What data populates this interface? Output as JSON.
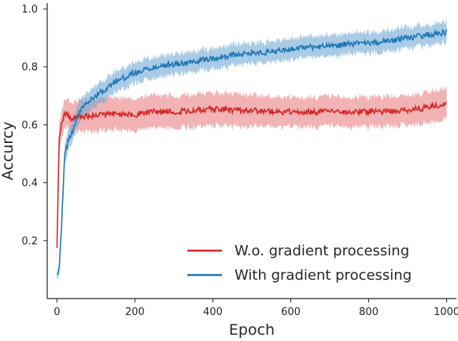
{
  "chart_data": {
    "type": "line",
    "xlabel": "Epoch",
    "ylabel": "Accurcy",
    "xlim": [
      -25,
      1025
    ],
    "ylim": [
      0.0,
      1.02
    ],
    "xticks": [
      0,
      200,
      400,
      600,
      800,
      1000
    ],
    "yticks": [
      0.2,
      0.4,
      0.6,
      0.8,
      1.0
    ],
    "xtick_labels": [
      "0",
      "200",
      "400",
      "600",
      "800",
      "1000"
    ],
    "ytick_labels": [
      "0.2",
      "0.4",
      "0.6",
      "0.8",
      "1.0"
    ],
    "grid": false,
    "legend_position": "lower-right",
    "series": [
      {
        "name": "W.o. gradient processing",
        "color": "#d62728",
        "band_color": "#e88080",
        "x": [
          0,
          3,
          6,
          10,
          15,
          20,
          30,
          40,
          60,
          80,
          100,
          150,
          200,
          250,
          300,
          350,
          400,
          450,
          500,
          550,
          600,
          650,
          700,
          750,
          800,
          850,
          900,
          950,
          1000
        ],
        "y": [
          0.17,
          0.4,
          0.55,
          0.59,
          0.62,
          0.64,
          0.63,
          0.62,
          0.63,
          0.63,
          0.635,
          0.64,
          0.635,
          0.645,
          0.645,
          0.65,
          0.655,
          0.65,
          0.65,
          0.645,
          0.645,
          0.645,
          0.645,
          0.645,
          0.645,
          0.645,
          0.65,
          0.66,
          0.67
        ],
        "lower": [
          0.16,
          0.36,
          0.51,
          0.55,
          0.58,
          0.6,
          0.59,
          0.58,
          0.585,
          0.585,
          0.585,
          0.59,
          0.585,
          0.595,
          0.595,
          0.6,
          0.605,
          0.6,
          0.6,
          0.6,
          0.6,
          0.6,
          0.6,
          0.6,
          0.6,
          0.6,
          0.605,
          0.61,
          0.625
        ],
        "upper": [
          0.18,
          0.44,
          0.59,
          0.63,
          0.66,
          0.68,
          0.68,
          0.67,
          0.68,
          0.68,
          0.685,
          0.69,
          0.685,
          0.695,
          0.695,
          0.7,
          0.705,
          0.7,
          0.7,
          0.69,
          0.69,
          0.69,
          0.69,
          0.69,
          0.69,
          0.69,
          0.695,
          0.705,
          0.72
        ]
      },
      {
        "name": "With gradient processing",
        "color": "#1f77b4",
        "band_color": "#6fa8d6",
        "x": [
          0,
          5,
          10,
          15,
          20,
          30,
          40,
          50,
          60,
          80,
          100,
          150,
          200,
          250,
          300,
          350,
          400,
          450,
          500,
          550,
          600,
          650,
          700,
          750,
          800,
          850,
          900,
          950,
          1000
        ],
        "y": [
          0.08,
          0.1,
          0.2,
          0.35,
          0.5,
          0.55,
          0.58,
          0.62,
          0.65,
          0.68,
          0.7,
          0.75,
          0.78,
          0.8,
          0.81,
          0.82,
          0.83,
          0.84,
          0.85,
          0.85,
          0.86,
          0.87,
          0.87,
          0.88,
          0.88,
          0.89,
          0.9,
          0.91,
          0.92
        ],
        "lower": [
          0.07,
          0.09,
          0.18,
          0.32,
          0.47,
          0.52,
          0.55,
          0.59,
          0.62,
          0.65,
          0.67,
          0.72,
          0.75,
          0.77,
          0.78,
          0.79,
          0.8,
          0.81,
          0.82,
          0.82,
          0.83,
          0.84,
          0.84,
          0.85,
          0.85,
          0.86,
          0.87,
          0.88,
          0.89
        ],
        "upper": [
          0.09,
          0.11,
          0.22,
          0.38,
          0.53,
          0.58,
          0.61,
          0.65,
          0.68,
          0.71,
          0.73,
          0.78,
          0.81,
          0.83,
          0.84,
          0.85,
          0.86,
          0.87,
          0.88,
          0.88,
          0.89,
          0.9,
          0.9,
          0.91,
          0.91,
          0.92,
          0.93,
          0.94,
          0.95
        ]
      }
    ]
  }
}
